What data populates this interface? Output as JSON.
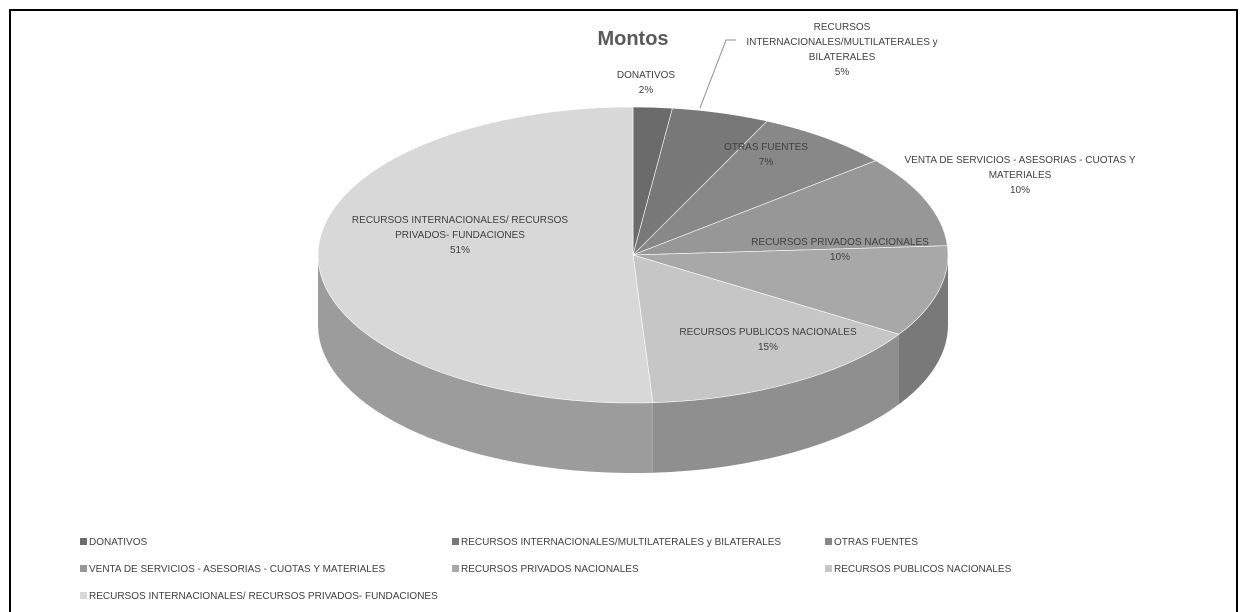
{
  "chart_data": {
    "type": "pie3d",
    "title": "Montos",
    "categories": [
      "DONATIVOS",
      "RECURSOS INTERNACIONALES/MULTILATERALES  y BILATERALES",
      "OTRAS FUENTES",
      "VENTA DE SERVICIOS - ASESORIAS - CUOTAS Y MATERIALES",
      "RECURSOS PRIVADOS NACIONALES",
      "RECURSOS PUBLICOS NACIONALES",
      "RECURSOS INTERNACIONALES/  RECURSOS PRIVADOS- FUNDACIONES"
    ],
    "values": [
      2,
      5,
      7,
      10,
      10,
      15,
      51
    ],
    "value_labels": [
      "2%",
      "5%",
      "7%",
      "10%",
      "10%",
      "15%",
      "51%"
    ],
    "colors": [
      "#6b6b6b",
      "#787878",
      "#888888",
      "#979797",
      "#a8a8a8",
      "#c6c6c6",
      "#d8d8d8"
    ],
    "legend": "bottom"
  }
}
